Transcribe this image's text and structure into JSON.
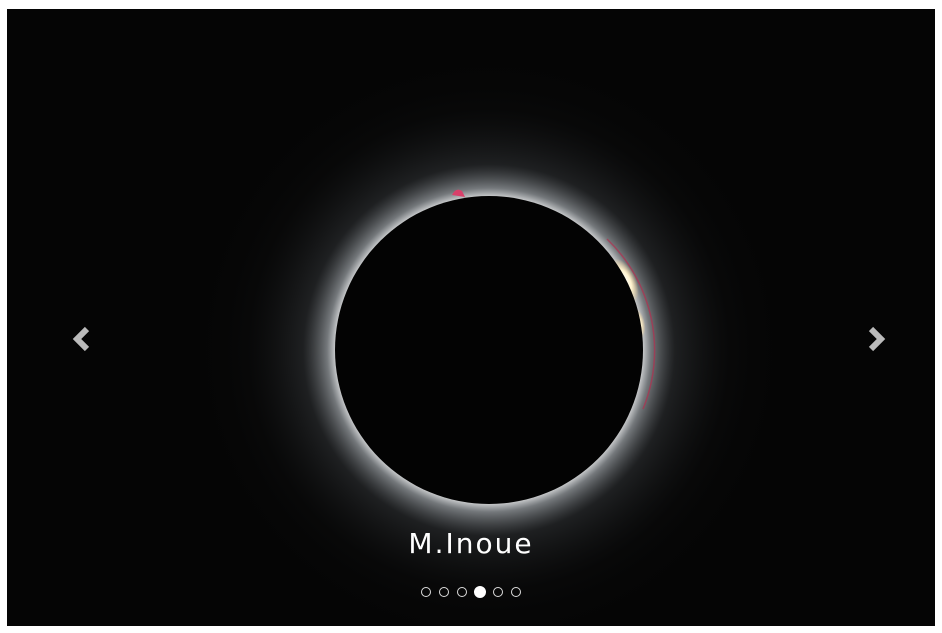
{
  "carousel": {
    "caption": "M.Inoue",
    "slide_count": 6,
    "active_index": 3
  }
}
